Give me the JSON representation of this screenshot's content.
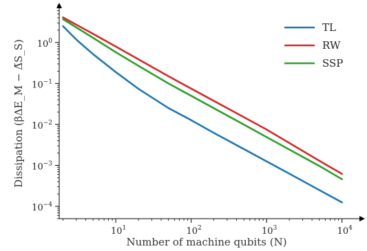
{
  "chart_data": {
    "type": "line",
    "xlabel": "Number of machine qubits (N)",
    "ylabel": "Dissipation (βΔE_M − Δ̃S_S)",
    "x_scale": "log",
    "y_scale": "log",
    "xlim": [
      1.78,
      15000
    ],
    "ylim": [
      5e-05,
      8
    ],
    "grid": false,
    "legend_position": "top-right",
    "x_ticks": [
      {
        "value": 10,
        "base": "10",
        "exp": "1"
      },
      {
        "value": 100,
        "base": "10",
        "exp": "2"
      },
      {
        "value": 1000,
        "base": "10",
        "exp": "3"
      },
      {
        "value": 10000,
        "base": "10",
        "exp": "4"
      }
    ],
    "y_ticks": [
      {
        "value": 0.0001,
        "base": "10",
        "exp": "−4"
      },
      {
        "value": 0.001,
        "base": "10",
        "exp": "−3"
      },
      {
        "value": 0.01,
        "base": "10",
        "exp": "−2"
      },
      {
        "value": 0.1,
        "base": "10",
        "exp": "−1"
      },
      {
        "value": 1,
        "base": "10",
        "exp": "0"
      }
    ],
    "series": [
      {
        "name": "TL",
        "color": "#1f77b4",
        "x": [
          2,
          3,
          5,
          10,
          20,
          50,
          100,
          200,
          500,
          1000,
          2000,
          5000,
          10000
        ],
        "y": [
          2.5,
          1.18,
          0.52,
          0.19,
          0.074,
          0.025,
          0.0127,
          0.0062,
          0.0025,
          0.00125,
          0.00063,
          0.00025,
          0.000125
        ]
      },
      {
        "name": "RW",
        "color": "#d62728",
        "x": [
          2,
          5,
          10,
          50,
          100,
          500,
          1000,
          5000,
          10000
        ],
        "y": [
          4.1,
          1.63,
          0.8,
          0.15,
          0.075,
          0.015,
          0.0075,
          0.0013,
          0.00062
        ]
      },
      {
        "name": "SSP",
        "color": "#2ca02c",
        "x": [
          2,
          5,
          10,
          20,
          50,
          100,
          500,
          1000,
          5000,
          10000
        ],
        "y": [
          3.7,
          1.3,
          0.58,
          0.27,
          0.1,
          0.05,
          0.0099,
          0.0049,
          0.00097,
          0.00046
        ]
      }
    ]
  }
}
